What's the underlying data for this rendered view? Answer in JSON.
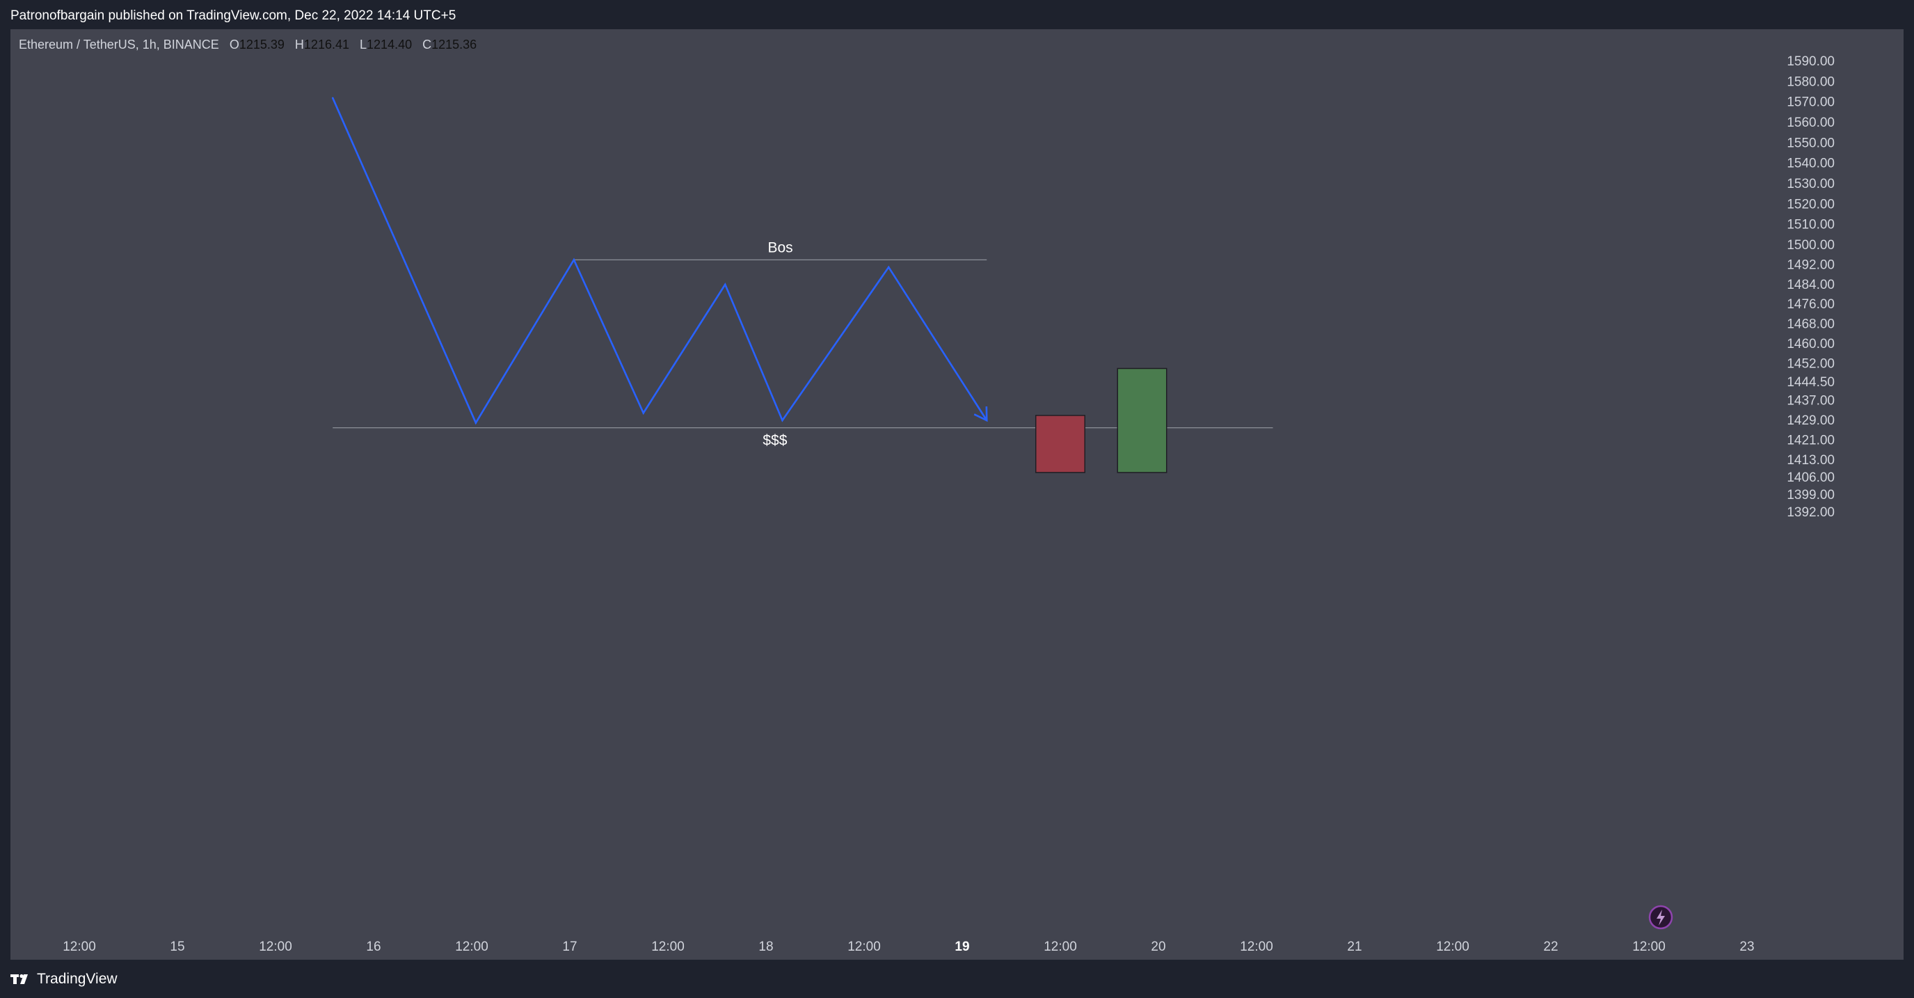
{
  "header": {
    "publish_text": "Patronofbargain published on TradingView.com, Dec 22, 2022 14:14 UTC+5"
  },
  "legend": {
    "symbol": "Ethereum / TetherUS, 1h, BINANCE",
    "open_label": "O",
    "open": "1215.39",
    "high_label": "H",
    "high": "1216.41",
    "low_label": "L",
    "low": "1214.40",
    "close_label": "C",
    "close": "1215.36"
  },
  "footer": {
    "brand": "TradingView"
  },
  "icons": {
    "logo": "tradingview-logo-icon",
    "lightning": "lightning-icon"
  },
  "colors": {
    "background": "#42444f",
    "frame": "#1e222d",
    "line": "#2962ff",
    "bear_candle": "#9a3a46",
    "bull_candle": "#4a7c4e",
    "level_line": "#9598a1"
  },
  "chart_data": {
    "type": "line",
    "symbol": "Ethereum / TetherUS",
    "interval": "1h",
    "exchange": "BINANCE",
    "y_ticks": [
      "1590.00",
      "1580.00",
      "1570.00",
      "1560.00",
      "1550.00",
      "1540.00",
      "1530.00",
      "1520.00",
      "1510.00",
      "1500.00",
      "1492.00",
      "1484.00",
      "1476.00",
      "1468.00",
      "1460.00",
      "1452.00",
      "1444.50",
      "1437.00",
      "1429.00",
      "1421.00",
      "1413.00",
      "1406.00",
      "1399.00",
      "1392.00"
    ],
    "x_ticks": [
      "12:00",
      "15",
      "12:00",
      "16",
      "12:00",
      "17",
      "12:00",
      "18",
      "12:00",
      "19",
      "12:00",
      "20",
      "12:00",
      "21",
      "12:00",
      "22",
      "12:00",
      "23"
    ],
    "x_tick_bold": "19",
    "series": [
      {
        "values": [
          {
            "x": "Dec 15 19:00",
            "y": 1572
          },
          {
            "x": "Dec 16 12:30",
            "y": 1428
          },
          {
            "x": "Dec 17 00:30",
            "y": 1494
          },
          {
            "x": "Dec 17 09:00",
            "y": 1432
          },
          {
            "x": "Dec 17 19:00",
            "y": 1484
          },
          {
            "x": "Dec 18 02:00",
            "y": 1429
          },
          {
            "x": "Dec 18 15:00",
            "y": 1491
          },
          {
            "x": "Dec 19 03:00",
            "y": 1429
          }
        ]
      }
    ],
    "levels": [
      {
        "label": "Bos",
        "y": 1494,
        "x_start": "Dec 17 00:30",
        "x_end": "Dec 19 03:00"
      },
      {
        "label": "$$$",
        "y": 1426,
        "x_start": "Dec 15 19:00",
        "x_end": "Dec 20 14:00"
      }
    ],
    "boxes": [
      {
        "kind": "bearish",
        "x_start": "Dec 19 09:00",
        "x_end": "Dec 19 15:00",
        "top": 1431,
        "bottom": 1408
      },
      {
        "kind": "bullish",
        "x_start": "Dec 19 19:00",
        "x_end": "Dec 20 01:00",
        "top": 1450,
        "bottom": 1408
      }
    ],
    "grid": false
  }
}
